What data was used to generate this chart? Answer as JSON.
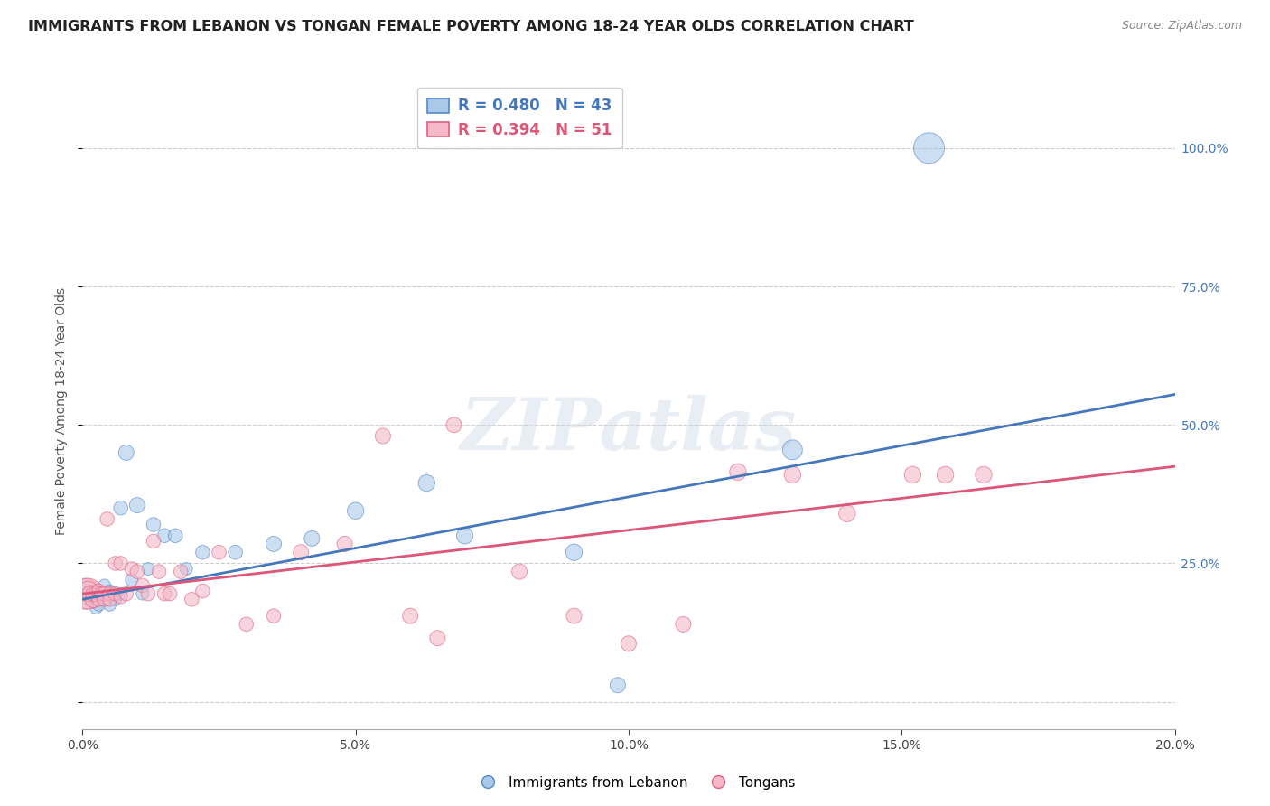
{
  "title": "IMMIGRANTS FROM LEBANON VS TONGAN FEMALE POVERTY AMONG 18-24 YEAR OLDS CORRELATION CHART",
  "source": "Source: ZipAtlas.com",
  "ylabel": "Female Poverty Among 18-24 Year Olds",
  "xlim": [
    0.0,
    0.2
  ],
  "ylim": [
    -0.05,
    1.1
  ],
  "yticks": [
    0.0,
    0.25,
    0.5,
    0.75,
    1.0
  ],
  "xticks": [
    0.0,
    0.05,
    0.1,
    0.15,
    0.2
  ],
  "xtick_labels": [
    "0.0%",
    "5.0%",
    "10.0%",
    "15.0%",
    "20.0%"
  ],
  "ytick_labels_right": [
    "",
    "25.0%",
    "50.0%",
    "75.0%",
    "100.0%"
  ],
  "blue_R": 0.48,
  "blue_N": 43,
  "pink_R": 0.394,
  "pink_N": 51,
  "blue_color": "#aac8e8",
  "pink_color": "#f4b8c8",
  "blue_edge_color": "#5588cc",
  "pink_edge_color": "#e06080",
  "blue_line_color": "#4477bb",
  "pink_line_color": "#dd5577",
  "legend_label_blue": "Immigrants from Lebanon",
  "legend_label_pink": "Tongans",
  "watermark": "ZIPatlas",
  "blue_line_x": [
    0.0,
    0.2
  ],
  "blue_line_y": [
    0.185,
    0.555
  ],
  "pink_line_x": [
    0.0,
    0.2
  ],
  "pink_line_y": [
    0.195,
    0.425
  ],
  "blue_scatter_x": [
    0.0008,
    0.001,
    0.0012,
    0.0015,
    0.0018,
    0.002,
    0.002,
    0.0022,
    0.0025,
    0.003,
    0.003,
    0.003,
    0.0035,
    0.004,
    0.004,
    0.0045,
    0.005,
    0.005,
    0.005,
    0.006,
    0.006,
    0.007,
    0.007,
    0.008,
    0.009,
    0.01,
    0.011,
    0.012,
    0.013,
    0.015,
    0.017,
    0.019,
    0.022,
    0.028,
    0.035,
    0.042,
    0.05,
    0.063,
    0.07,
    0.09,
    0.098,
    0.13,
    0.155
  ],
  "blue_scatter_y": [
    0.195,
    0.185,
    0.2,
    0.19,
    0.18,
    0.195,
    0.2,
    0.185,
    0.17,
    0.195,
    0.185,
    0.175,
    0.19,
    0.195,
    0.21,
    0.185,
    0.2,
    0.195,
    0.175,
    0.195,
    0.185,
    0.195,
    0.35,
    0.45,
    0.22,
    0.355,
    0.195,
    0.24,
    0.32,
    0.3,
    0.3,
    0.24,
    0.27,
    0.27,
    0.285,
    0.295,
    0.345,
    0.395,
    0.3,
    0.27,
    0.03,
    0.455,
    1.0
  ],
  "blue_scatter_size": [
    20,
    20,
    20,
    20,
    20,
    20,
    20,
    20,
    20,
    20,
    20,
    20,
    20,
    20,
    20,
    20,
    20,
    20,
    20,
    20,
    20,
    20,
    25,
    30,
    20,
    30,
    20,
    20,
    25,
    25,
    25,
    20,
    25,
    25,
    30,
    30,
    35,
    35,
    35,
    35,
    30,
    50,
    120
  ],
  "pink_scatter_x": [
    0.0005,
    0.001,
    0.001,
    0.0015,
    0.002,
    0.002,
    0.0025,
    0.003,
    0.003,
    0.003,
    0.0035,
    0.004,
    0.004,
    0.0045,
    0.005,
    0.005,
    0.006,
    0.006,
    0.007,
    0.007,
    0.008,
    0.009,
    0.01,
    0.011,
    0.012,
    0.013,
    0.014,
    0.015,
    0.016,
    0.018,
    0.02,
    0.022,
    0.025,
    0.03,
    0.035,
    0.04,
    0.048,
    0.055,
    0.06,
    0.065,
    0.068,
    0.08,
    0.09,
    0.1,
    0.11,
    0.12,
    0.13,
    0.14,
    0.152,
    0.158,
    0.165
  ],
  "pink_scatter_y": [
    0.195,
    0.195,
    0.2,
    0.195,
    0.185,
    0.195,
    0.195,
    0.195,
    0.2,
    0.185,
    0.195,
    0.195,
    0.185,
    0.33,
    0.195,
    0.185,
    0.195,
    0.25,
    0.25,
    0.19,
    0.195,
    0.24,
    0.235,
    0.21,
    0.195,
    0.29,
    0.235,
    0.195,
    0.195,
    0.235,
    0.185,
    0.2,
    0.27,
    0.14,
    0.155,
    0.27,
    0.285,
    0.48,
    0.155,
    0.115,
    0.5,
    0.235,
    0.155,
    0.105,
    0.14,
    0.415,
    0.41,
    0.34,
    0.41,
    0.41,
    0.41
  ],
  "pink_scatter_size": [
    120,
    120,
    50,
    35,
    35,
    30,
    30,
    25,
    25,
    25,
    25,
    25,
    25,
    25,
    25,
    25,
    25,
    25,
    25,
    25,
    25,
    25,
    25,
    25,
    25,
    25,
    25,
    25,
    25,
    25,
    25,
    25,
    25,
    25,
    25,
    30,
    30,
    30,
    30,
    30,
    30,
    30,
    30,
    30,
    30,
    35,
    35,
    35,
    35,
    35,
    35
  ]
}
